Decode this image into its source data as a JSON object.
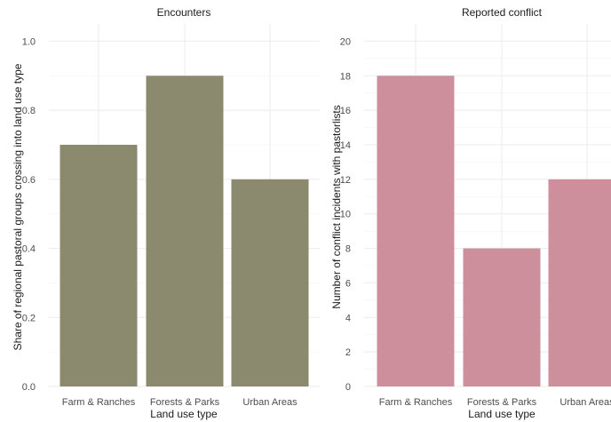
{
  "chart_data": [
    {
      "type": "bar",
      "title": "Encounters",
      "xlabel": "Land use type",
      "ylabel": "Share of regional pastoral groups crossing into land use type",
      "categories": [
        "Farm & Ranches",
        "Forests & Parks",
        "Urban Areas"
      ],
      "values": [
        0.7,
        0.9,
        0.6
      ],
      "ylim": [
        0,
        1.05
      ],
      "yticks": [
        "0.0",
        "0.2",
        "0.4",
        "0.6",
        "0.8",
        "1.0"
      ],
      "color": "#8b8a6f",
      "grid": true
    },
    {
      "type": "bar",
      "title": "Reported conflict",
      "xlabel": "Land use type",
      "ylabel": "Number of conflict incidents with pastorlists",
      "categories": [
        "Farm & Ranches",
        "Forests & Parks",
        "Urban Areas"
      ],
      "values": [
        18,
        8,
        12
      ],
      "ylim": [
        0,
        21
      ],
      "yticks": [
        "0",
        "2",
        "4",
        "6",
        "8",
        "10",
        "12",
        "14",
        "16",
        "18",
        "20"
      ],
      "color": "#cd8f9b",
      "grid": true
    }
  ]
}
